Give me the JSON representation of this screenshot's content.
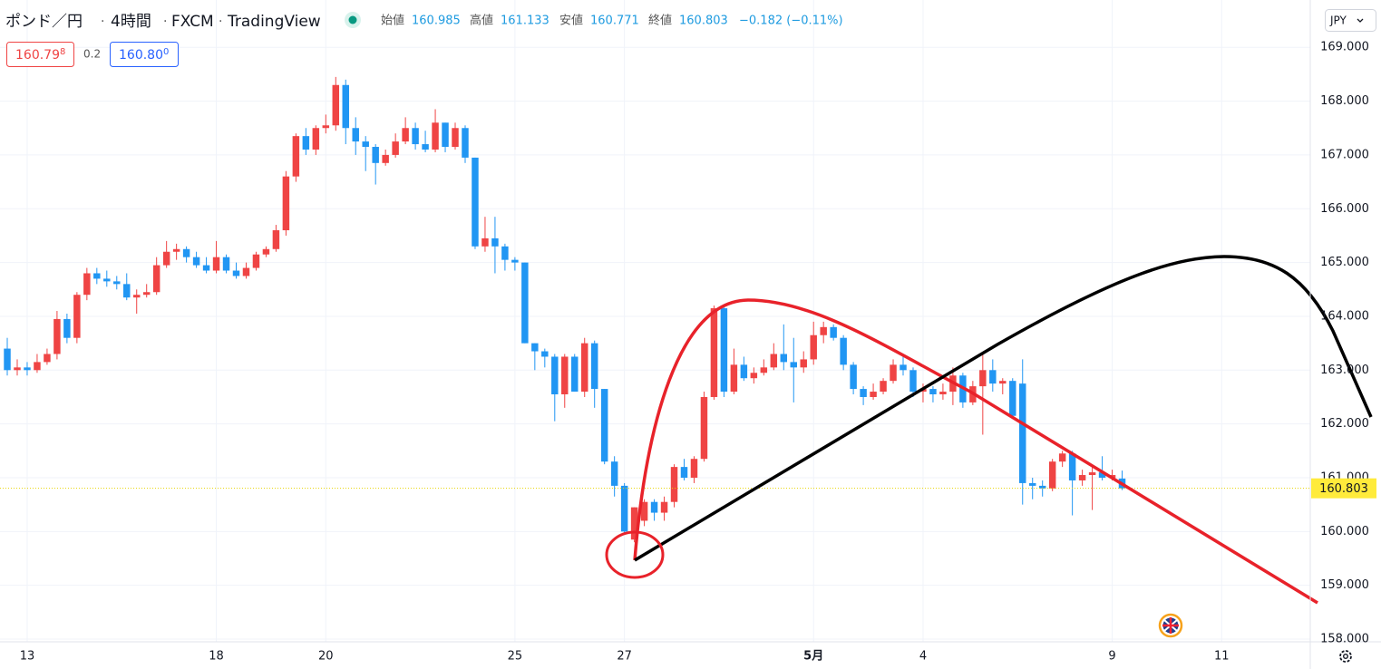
{
  "header": {
    "symbol": "ポンド／円",
    "interval": "4時間",
    "source": "FXCM",
    "platform": "TradingView",
    "open_label": "始値",
    "high_label": "高値",
    "low_label": "安値",
    "close_label": "終値",
    "change": "−0.182 (−0.11%)",
    "bid": "160.79",
    "bid_sub": "8",
    "spread": "0.2",
    "ask": "160.80",
    "ask_sub": "0",
    "currency": "JPY"
  },
  "chart_data": {
    "type": "candlestick",
    "x": [
      0,
      1,
      2,
      3,
      4,
      5,
      6,
      7,
      8,
      9,
      10,
      11,
      12,
      13,
      14,
      15,
      16,
      17,
      18,
      19,
      20,
      21,
      22,
      23,
      24,
      25,
      26,
      27,
      28,
      29,
      30,
      31,
      32,
      33,
      34,
      35,
      36,
      37,
      38,
      39,
      40,
      41,
      42,
      43,
      44,
      45,
      46,
      47,
      48,
      49,
      50,
      51,
      52,
      53,
      54,
      55,
      56,
      57,
      58,
      59,
      60,
      61,
      62,
      63,
      64,
      65,
      66,
      67,
      68,
      69,
      70,
      71,
      72,
      73,
      74,
      75,
      76,
      77,
      78,
      79,
      80,
      81,
      82,
      83,
      84,
      85,
      86,
      87,
      88,
      89,
      90,
      91,
      92,
      93,
      94,
      95,
      96,
      97,
      98,
      99,
      100,
      101,
      102,
      103,
      104,
      105,
      106,
      107,
      108,
      109,
      110,
      111,
      112
    ],
    "open": [
      163.4,
      163.0,
      163.05,
      163.0,
      163.15,
      163.3,
      163.95,
      163.6,
      164.4,
      164.8,
      164.7,
      164.65,
      164.6,
      164.35,
      164.4,
      164.45,
      164.95,
      165.2,
      165.25,
      165.1,
      164.95,
      164.85,
      165.1,
      164.85,
      164.75,
      164.9,
      165.15,
      165.25,
      165.6,
      166.6,
      167.35,
      167.1,
      167.5,
      167.55,
      168.3,
      167.5,
      167.25,
      167.15,
      166.85,
      167.0,
      167.25,
      167.5,
      167.2,
      167.1,
      167.6,
      167.15,
      167.5,
      166.95,
      165.3,
      165.45,
      165.3,
      165.05,
      165.0,
      163.5,
      163.35,
      163.25,
      162.55,
      163.25,
      162.6,
      163.5,
      162.65,
      161.3,
      160.85,
      159.85,
      160.2,
      160.55,
      160.35,
      160.55,
      161.2,
      161.0,
      161.35,
      162.5,
      164.15,
      162.6,
      163.1,
      162.85,
      162.95,
      163.05,
      163.3,
      163.15,
      163.05,
      163.2,
      163.65,
      163.8,
      163.6,
      163.1,
      162.65,
      162.5,
      162.6,
      162.8,
      163.1,
      163.0,
      162.6,
      162.65,
      162.55,
      162.6,
      162.9,
      162.4,
      162.7,
      163.0,
      162.75,
      162.8,
      162.75,
      160.9,
      160.85,
      160.8,
      161.3,
      161.45,
      160.95,
      161.05,
      161.1,
      161.0,
      160.985
    ],
    "high": [
      163.6,
      163.2,
      163.15,
      163.3,
      163.4,
      164.1,
      164.05,
      164.45,
      164.9,
      164.9,
      164.85,
      164.75,
      164.8,
      164.5,
      164.6,
      165.1,
      165.4,
      165.35,
      165.3,
      165.2,
      165.1,
      165.4,
      165.15,
      165.0,
      165.0,
      165.2,
      165.3,
      165.7,
      166.7,
      167.4,
      167.5,
      167.55,
      167.75,
      168.45,
      168.4,
      167.7,
      167.35,
      167.2,
      167.1,
      167.4,
      167.7,
      167.6,
      167.45,
      167.85,
      167.6,
      167.6,
      167.55,
      166.95,
      165.85,
      165.85,
      165.35,
      165.1,
      165.0,
      163.5,
      163.4,
      163.3,
      163.3,
      163.3,
      163.6,
      163.55,
      162.65,
      161.4,
      160.9,
      160.45,
      160.6,
      160.6,
      160.65,
      161.25,
      161.35,
      161.4,
      162.6,
      164.2,
      164.2,
      163.4,
      163.25,
      163.05,
      163.2,
      163.5,
      163.85,
      163.6,
      163.35,
      163.9,
      163.9,
      163.85,
      163.65,
      163.15,
      162.7,
      162.75,
      162.85,
      163.2,
      163.25,
      163.05,
      162.75,
      162.7,
      162.75,
      163.05,
      162.95,
      162.8,
      163.3,
      163.2,
      162.85,
      162.85,
      163.2,
      161.0,
      160.95,
      161.35,
      161.5,
      161.5,
      161.15,
      161.2,
      161.4,
      161.15,
      161.133
    ],
    "low": [
      162.9,
      162.9,
      162.9,
      162.95,
      163.1,
      163.2,
      163.5,
      163.5,
      164.3,
      164.6,
      164.55,
      164.5,
      164.3,
      164.05,
      164.35,
      164.4,
      164.9,
      165.05,
      165.0,
      164.9,
      164.8,
      164.8,
      164.8,
      164.7,
      164.7,
      164.85,
      165.1,
      165.2,
      165.5,
      166.5,
      167.0,
      167.0,
      167.4,
      167.45,
      167.2,
      167.0,
      166.7,
      166.45,
      166.8,
      166.95,
      167.2,
      167.1,
      167.05,
      167.05,
      167.05,
      167.1,
      166.85,
      165.25,
      165.2,
      164.8,
      164.85,
      164.85,
      163.5,
      163.0,
      163.05,
      162.05,
      162.3,
      162.6,
      162.5,
      162.3,
      161.25,
      160.65,
      159.95,
      159.8,
      160.1,
      160.2,
      160.2,
      160.45,
      160.95,
      160.9,
      161.3,
      162.45,
      162.5,
      162.55,
      162.8,
      162.75,
      162.9,
      163.0,
      163.0,
      162.4,
      162.95,
      163.1,
      163.5,
      163.55,
      163.0,
      162.55,
      162.35,
      162.45,
      162.55,
      162.75,
      162.9,
      162.5,
      162.4,
      162.4,
      162.45,
      162.35,
      162.3,
      162.35,
      161.8,
      162.6,
      162.55,
      162.1,
      160.5,
      160.6,
      160.65,
      160.75,
      161.2,
      160.3,
      160.85,
      160.4,
      160.95,
      160.95,
      160.771
    ],
    "close": [
      163.0,
      163.05,
      163.0,
      163.15,
      163.3,
      163.95,
      163.6,
      164.4,
      164.8,
      164.7,
      164.65,
      164.6,
      164.35,
      164.4,
      164.45,
      164.95,
      165.2,
      165.25,
      165.1,
      164.95,
      164.85,
      165.1,
      164.85,
      164.75,
      164.9,
      165.15,
      165.25,
      165.6,
      166.6,
      167.35,
      167.1,
      167.5,
      167.55,
      168.3,
      167.5,
      167.25,
      167.15,
      166.85,
      167.0,
      167.25,
      167.5,
      167.2,
      167.1,
      167.6,
      167.15,
      167.5,
      166.95,
      165.3,
      165.45,
      165.3,
      165.05,
      165.0,
      163.5,
      163.35,
      163.25,
      162.55,
      163.25,
      162.6,
      163.5,
      162.65,
      161.3,
      160.85,
      160.0,
      160.45,
      160.55,
      160.35,
      160.55,
      161.2,
      161.0,
      161.35,
      162.5,
      164.15,
      162.6,
      163.1,
      162.85,
      162.95,
      163.05,
      163.3,
      163.15,
      163.05,
      163.2,
      163.65,
      163.8,
      163.6,
      163.1,
      162.65,
      162.5,
      162.6,
      162.8,
      163.1,
      163.0,
      162.6,
      162.65,
      162.55,
      162.6,
      162.9,
      162.4,
      162.7,
      163.0,
      162.75,
      162.8,
      162.15,
      160.9,
      160.85,
      160.8,
      161.3,
      161.45,
      160.95,
      161.05,
      161.1,
      161.0,
      161.05,
      160.803
    ],
    "up_color": "#ef4444",
    "down_color": "#2196f3",
    "xlim": [
      -0.73,
      130.9
    ],
    "xticks": [
      {
        "value": 2,
        "label": "13"
      },
      {
        "value": 21,
        "label": "18"
      },
      {
        "value": 32,
        "label": "20"
      },
      {
        "value": 51,
        "label": "25"
      },
      {
        "value": 62,
        "label": "27"
      },
      {
        "value": 81,
        "label": "5月"
      },
      {
        "value": 92,
        "label": "4"
      },
      {
        "value": 111,
        "label": "9"
      },
      {
        "value": 122,
        "label": "11"
      }
    ],
    "ylim": [
      157.95,
      169.88
    ],
    "yticks": [
      {
        "value": 158,
        "label": "158.000"
      },
      {
        "value": 159,
        "label": "159.000"
      },
      {
        "value": 160,
        "label": "160.000"
      },
      {
        "value": 161,
        "label": "161.000"
      },
      {
        "value": 162,
        "label": "162.000"
      },
      {
        "value": 163,
        "label": "163.000"
      },
      {
        "value": 164,
        "label": "164.000"
      },
      {
        "value": 165,
        "label": "165.000"
      },
      {
        "value": 166,
        "label": "166.000"
      },
      {
        "value": 167,
        "label": "167.000"
      },
      {
        "value": 168,
        "label": "168.000"
      },
      {
        "value": 169,
        "label": "169.000"
      }
    ],
    "grid": true
  }
}
